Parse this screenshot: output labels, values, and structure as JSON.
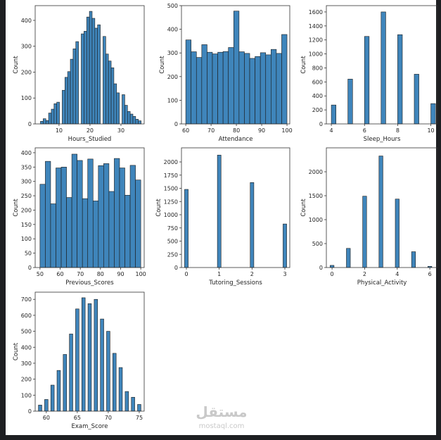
{
  "watermark": {
    "arabic": "مستقل",
    "latin": "mostaql.com"
  },
  "colors": {
    "bar": "#3f85bb",
    "edge": "#1a1a1a",
    "background": "#ffffff",
    "frame": "#1e1f22"
  },
  "chart_data": [
    {
      "type": "bar",
      "xlabel": "Hours_Studied",
      "ylabel": "Count",
      "xlim": [
        2.3,
        37.5
      ],
      "ylim": [
        0,
        457
      ],
      "xticks": [
        10,
        20,
        30
      ],
      "yticks": [
        0,
        100,
        200,
        300,
        400
      ],
      "bin_start": 4,
      "bin_end": 36.5,
      "counts": [
        10,
        20,
        13,
        42,
        57,
        78,
        84,
        0,
        130,
        180,
        202,
        250,
        290,
        318,
        0,
        348,
        358,
        413,
        435,
        408,
        370,
        383,
        0,
        338,
        270,
        243,
        217,
        155,
        120,
        0,
        113,
        72,
        48,
        38,
        29,
        18,
        12
      ]
    },
    {
      "type": "bar",
      "xlabel": "Attendance",
      "ylabel": "Count",
      "xlim": [
        58.3,
        101.1
      ],
      "ylim": [
        0,
        500
      ],
      "xticks": [
        60,
        70,
        80,
        90,
        100
      ],
      "yticks": [
        0,
        100,
        200,
        300,
        400,
        500
      ],
      "bin_start": 60,
      "bin_end": 100,
      "counts": [
        355,
        305,
        281,
        335,
        303,
        296,
        303,
        306,
        323,
        477,
        305,
        298,
        277,
        285,
        301,
        292,
        315,
        298,
        378
      ]
    },
    {
      "type": "bar",
      "xlabel": "Sleep_Hours",
      "ylabel": "Count",
      "xlim": [
        3.7,
        10.4
      ],
      "ylim": [
        0,
        1690
      ],
      "xticks": [
        4,
        6,
        8,
        10
      ],
      "yticks": [
        0,
        200,
        400,
        600,
        800,
        1000,
        1200,
        1400,
        1600
      ],
      "x": [
        4,
        5,
        6,
        7,
        8,
        9,
        10
      ],
      "width": 0.28,
      "align": "left",
      "counts": [
        270,
        640,
        1250,
        1600,
        1275,
        710,
        290
      ]
    },
    {
      "type": "bar",
      "xlabel": "Previous_Scores",
      "ylabel": "Count",
      "xlim": [
        47.6,
        101.7
      ],
      "ylim": [
        0,
        417
      ],
      "xticks": [
        50,
        60,
        70,
        80,
        90,
        100
      ],
      "yticks": [
        0,
        50,
        100,
        150,
        200,
        250,
        300,
        350,
        400
      ],
      "bin_start": 50,
      "bin_end": 100,
      "counts": [
        290,
        370,
        222,
        347,
        350,
        244,
        395,
        373,
        240,
        378,
        232,
        355,
        362,
        265,
        380,
        347,
        252,
        356,
        305
      ]
    },
    {
      "type": "bar",
      "xlabel": "Tutoring_Sessions",
      "ylabel": "Count",
      "xlim": [
        -0.15,
        3.15
      ],
      "ylim": [
        0,
        2267
      ],
      "xticks": [
        0,
        1,
        2,
        3
      ],
      "yticks": [
        0,
        250,
        500,
        750,
        1000,
        1250,
        1500,
        1750,
        2000
      ],
      "x": [
        0,
        1,
        2,
        3
      ],
      "width": 0.11,
      "align": "center",
      "counts": [
        1480,
        2130,
        1610,
        825
      ]
    },
    {
      "type": "bar",
      "xlabel": "Physical_Activity",
      "ylabel": "Count",
      "xlim": [
        -0.35,
        6.47
      ],
      "ylim": [
        0,
        2500
      ],
      "xticks": [
        0,
        2,
        4,
        6
      ],
      "yticks": [
        0,
        500,
        1000,
        1500,
        2000
      ],
      "x": [
        0,
        1,
        2,
        3,
        4,
        5,
        6
      ],
      "width": 0.24,
      "align": "center",
      "counts": [
        45,
        400,
        1490,
        2330,
        1430,
        330,
        25
      ]
    },
    {
      "type": "bar",
      "xlabel": "Exam_Score",
      "ylabel": "Count",
      "xlim": [
        58.2,
        75.8
      ],
      "ylim": [
        0,
        745
      ],
      "xticks": [
        60,
        65,
        70,
        75
      ],
      "yticks": [
        0,
        100,
        200,
        300,
        400,
        500,
        600,
        700
      ],
      "x": [
        59,
        60,
        61,
        62,
        63,
        64,
        65,
        66,
        67,
        68,
        69,
        70,
        71,
        72,
        73,
        74,
        75
      ],
      "width": 0.55,
      "align": "center",
      "counts": [
        38,
        73,
        163,
        255,
        355,
        483,
        640,
        710,
        673,
        700,
        577,
        500,
        362,
        273,
        123,
        87,
        42
      ]
    }
  ]
}
